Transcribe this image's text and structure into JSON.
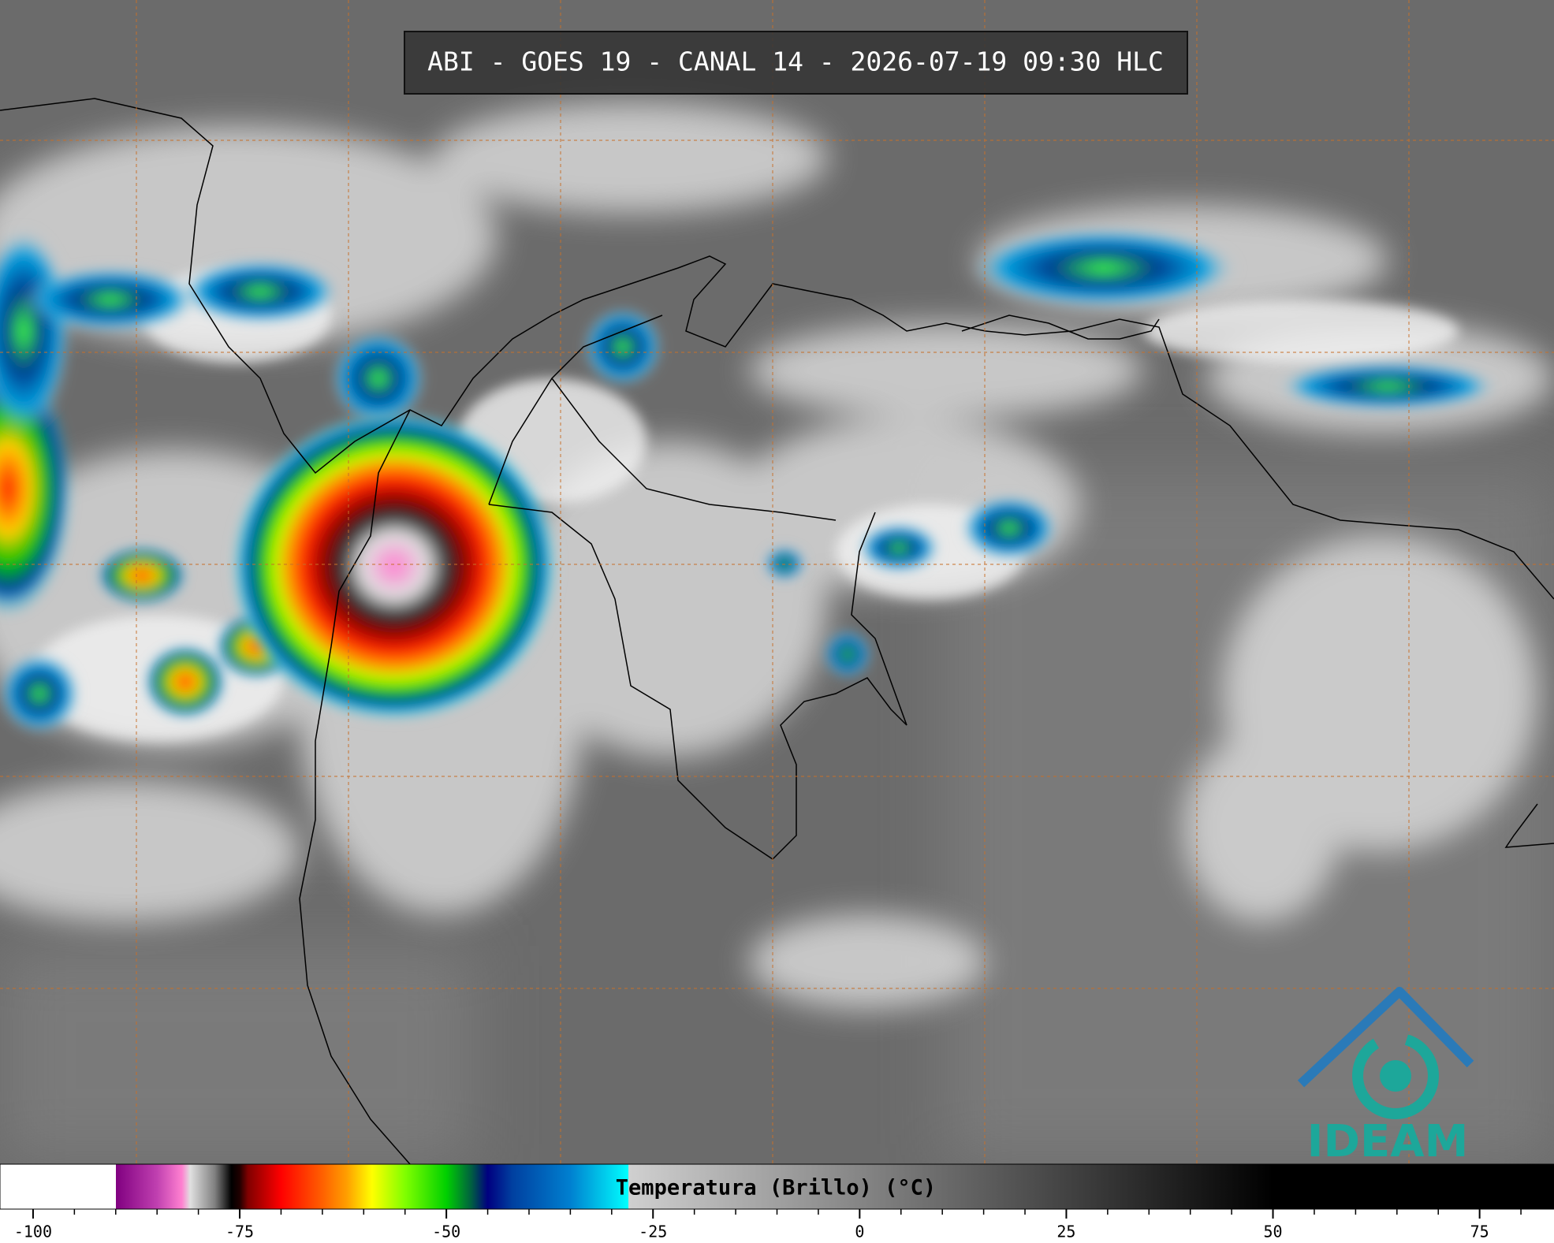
{
  "header": {
    "title": "ABI - GOES 19 - CANAL 14 - 2026-07-19 09:30 HLC"
  },
  "colorbar": {
    "label": "Temperatura (Brillo) (°C)",
    "lim": [
      -104,
      84
    ],
    "ticks": [
      -100,
      -75,
      -50,
      -25,
      0,
      25,
      50,
      75
    ],
    "minor_ticks": [
      -95,
      -90,
      -85,
      -80,
      -70,
      -65,
      -60,
      -55,
      -45,
      -40,
      -35,
      -30,
      -20,
      -15,
      -10,
      -5,
      5,
      10,
      15,
      20,
      30,
      35,
      40,
      45,
      55,
      60,
      65,
      70,
      80
    ],
    "colormap": [
      [
        -104,
        "#ffffff"
      ],
      [
        -90,
        "#ffffff"
      ],
      [
        -90,
        "#800080"
      ],
      [
        -85,
        "#c040b0"
      ],
      [
        -82,
        "#ff80d0"
      ],
      [
        -81,
        "#e0e0e0"
      ],
      [
        -78,
        "#808080"
      ],
      [
        -76,
        "#000000"
      ],
      [
        -75,
        "#200000"
      ],
      [
        -74,
        "#800000"
      ],
      [
        -70,
        "#ff0000"
      ],
      [
        -65,
        "#ff6000"
      ],
      [
        -62,
        "#ffa000"
      ],
      [
        -59,
        "#ffff00"
      ],
      [
        -55,
        "#80ff00"
      ],
      [
        -50,
        "#00d000"
      ],
      [
        -47,
        "#006040"
      ],
      [
        -45,
        "#000080"
      ],
      [
        -42,
        "#0040a0"
      ],
      [
        -35,
        "#0080d0"
      ],
      [
        -28,
        "#00ffff"
      ],
      [
        -28,
        "#d0d0d0"
      ],
      [
        50,
        "#000000"
      ],
      [
        84,
        "#000000"
      ]
    ]
  },
  "logo": {
    "text": "IDEAM"
  }
}
